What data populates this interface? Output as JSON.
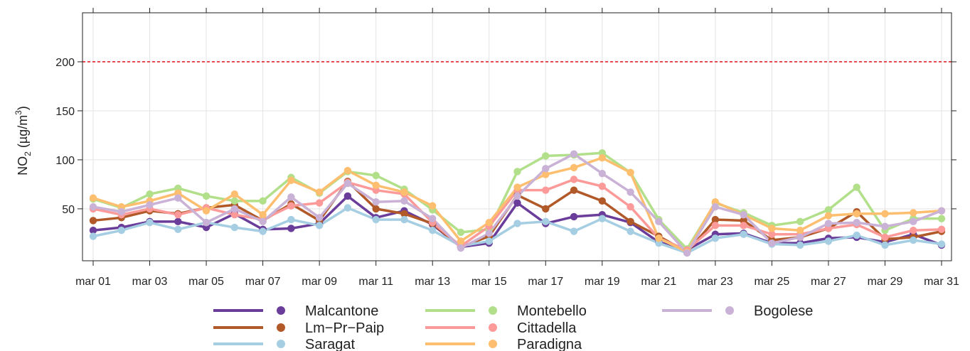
{
  "chart_data": {
    "type": "line",
    "title": "",
    "ylabel": {
      "prefix": "NO",
      "sub": "2",
      "mid": " (µg/m",
      "sup": "3",
      "suffix": ")"
    },
    "ylim": [
      -3,
      250
    ],
    "yticks": [
      50,
      100,
      150,
      200
    ],
    "threshold": {
      "value": 200,
      "color": "#e0262b"
    },
    "x": [
      "mar 01",
      "mar 02",
      "mar 03",
      "mar 04",
      "mar 05",
      "mar 06",
      "mar 07",
      "mar 08",
      "mar 09",
      "mar 10",
      "mar 11",
      "mar 12",
      "mar 13",
      "mar 14",
      "mar 15",
      "mar 16",
      "mar 17",
      "mar 18",
      "mar 19",
      "mar 20",
      "mar 21",
      "mar 22",
      "mar 23",
      "mar 24",
      "mar 25",
      "mar 26",
      "mar 27",
      "mar 28",
      "mar 29",
      "mar 30",
      "mar 31"
    ],
    "xtick_labels": [
      "mar 01",
      "mar 03",
      "mar 05",
      "mar 07",
      "mar 09",
      "mar 11",
      "mar 13",
      "mar 15",
      "mar 17",
      "mar 19",
      "mar 21",
      "mar 23",
      "mar 25",
      "mar 27",
      "mar 29",
      "mar 31"
    ],
    "grid": true,
    "legend_position": "bottom",
    "series": [
      {
        "name": "Malcantone",
        "color": "#6a3d9a",
        "values": [
          28,
          31,
          37,
          37,
          31,
          45,
          29,
          30,
          35,
          63,
          41,
          48,
          34,
          11,
          15,
          56,
          35,
          42,
          44,
          36,
          16,
          8,
          24,
          25,
          15,
          15,
          20,
          21,
          16,
          24,
          13
        ]
      },
      {
        "name": "Lm−Pr−Paip",
        "color": "#b15928",
        "values": [
          38,
          41,
          48,
          45,
          51,
          54,
          38,
          55,
          38,
          78,
          50,
          45,
          35,
          11,
          22,
          64,
          50,
          69,
          58,
          37,
          22,
          6,
          39,
          38,
          18,
          21,
          30,
          47,
          19,
          21,
          27
        ]
      },
      {
        "name": "Saragat",
        "color": "#a6cee3",
        "values": [
          22,
          28,
          36,
          29,
          36,
          31,
          27,
          39,
          33,
          51,
          39,
          39,
          28,
          12,
          17,
          35,
          37,
          27,
          40,
          27,
          15,
          5,
          20,
          24,
          14,
          13,
          17,
          23,
          13,
          18,
          14
        ]
      },
      {
        "name": "Montebello",
        "color": "#b2df8a",
        "values": [
          60,
          51,
          65,
          71,
          63,
          58,
          58,
          82,
          66,
          88,
          84,
          70,
          49,
          26,
          29,
          88,
          104,
          105,
          107,
          87,
          39,
          9,
          56,
          46,
          33,
          37,
          49,
          72,
          28,
          40,
          40
        ]
      },
      {
        "name": "Cittadella",
        "color": "#fb9a99",
        "values": [
          50,
          44,
          50,
          44,
          51,
          44,
          39,
          53,
          56,
          77,
          69,
          65,
          36,
          12,
          32,
          69,
          69,
          80,
          73,
          52,
          20,
          8,
          33,
          33,
          24,
          24,
          30,
          34,
          21,
          28,
          29
        ]
      },
      {
        "name": "Paradigna",
        "color": "#fdbf6f",
        "values": [
          61,
          52,
          58,
          66,
          48,
          65,
          44,
          79,
          67,
          89,
          74,
          67,
          53,
          17,
          36,
          72,
          85,
          92,
          102,
          87,
          20,
          6,
          57,
          44,
          30,
          28,
          43,
          45,
          45,
          46,
          48
        ]
      },
      {
        "name": "Bogolese",
        "color": "#cab2d6",
        "values": [
          52,
          47,
          54,
          61,
          36,
          50,
          37,
          62,
          41,
          76,
          57,
          58,
          40,
          10,
          25,
          63,
          91,
          106,
          86,
          67,
          37,
          5,
          52,
          44,
          15,
          21,
          35,
          36,
          32,
          37,
          48
        ]
      }
    ]
  }
}
